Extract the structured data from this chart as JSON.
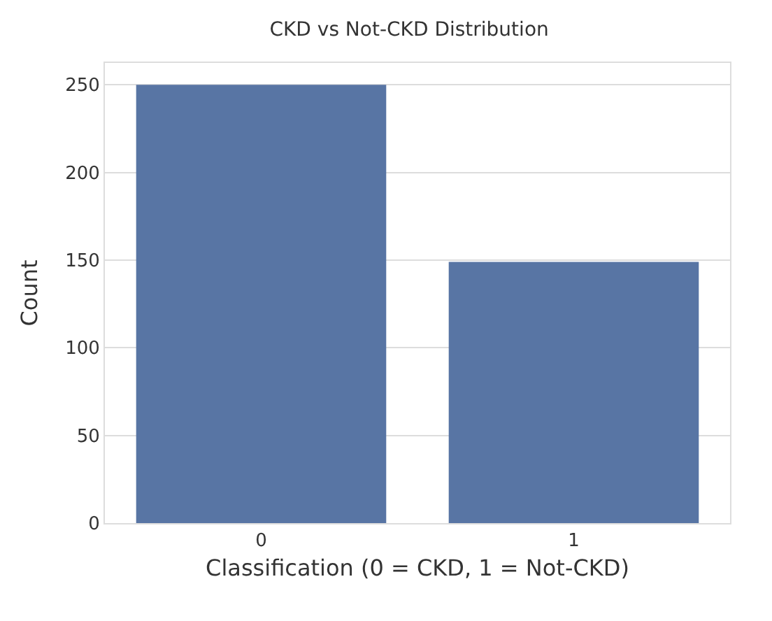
{
  "chart_data": {
    "type": "bar",
    "title": "CKD vs Not-CKD Distribution",
    "xlabel": "Classification (0 = CKD, 1 = Not-CKD)",
    "ylabel": "Count",
    "categories": [
      "0",
      "1"
    ],
    "values": [
      250,
      149
    ],
    "color": "#5875a4",
    "ylim": [
      0,
      262.5
    ],
    "yticks": [
      0,
      50,
      100,
      150,
      200,
      250
    ],
    "grid": "y"
  }
}
